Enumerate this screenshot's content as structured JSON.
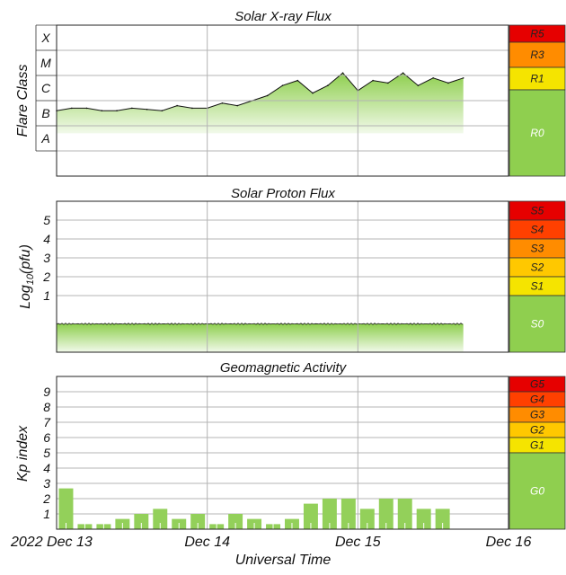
{
  "colors": {
    "green": "#8fcf4f",
    "yellow": "#f5e400",
    "light_orange": "#ffc800",
    "orange": "#ff8c00",
    "red_orange": "#ff4000",
    "red": "#e60000",
    "kp_bar": "#93d05a",
    "curve": "#111111"
  },
  "x_axis": {
    "label": "Universal Time",
    "ticks": [
      "2022 Dec 13",
      "Dec 14",
      "Dec 15",
      "Dec 16"
    ],
    "tick_days": [
      0,
      1,
      2,
      3
    ],
    "range_days": [
      0,
      3
    ]
  },
  "xray": {
    "title": "Solar X-ray Flux",
    "ylabel": "Flare Class",
    "classes": [
      "X",
      "M",
      "C",
      "B",
      "A"
    ],
    "scale": [
      {
        "label": "R5",
        "color": "red"
      },
      {
        "label": "R3",
        "color": "orange"
      },
      {
        "label": "R1",
        "color": "yellow"
      },
      {
        "label": "R0",
        "color": "green"
      }
    ]
  },
  "proton": {
    "title": "Solar Proton Flux",
    "ylabel": "Log10(pfu)",
    "ylabel_main": "Log",
    "ylabel_sub": "10",
    "ylabel_unit": "(pfu)",
    "ticks": [
      "1",
      "2",
      "3",
      "4",
      "5"
    ],
    "scale": [
      {
        "label": "S5",
        "color": "red"
      },
      {
        "label": "S4",
        "color": "red_orange"
      },
      {
        "label": "S3",
        "color": "orange"
      },
      {
        "label": "S2",
        "color": "light_orange"
      },
      {
        "label": "S1",
        "color": "yellow"
      },
      {
        "label": "S0",
        "color": "green"
      }
    ]
  },
  "kp": {
    "title": "Geomagnetic Activity",
    "ylabel": "Kp index",
    "ticks": [
      "1",
      "2",
      "3",
      "4",
      "5",
      "6",
      "7",
      "8",
      "9"
    ],
    "scale": [
      {
        "label": "G5",
        "color": "red"
      },
      {
        "label": "G4",
        "color": "red_orange"
      },
      {
        "label": "G3",
        "color": "orange"
      },
      {
        "label": "G2",
        "color": "light_orange"
      },
      {
        "label": "G1",
        "color": "yellow"
      },
      {
        "label": "G0",
        "color": "green"
      }
    ]
  },
  "chart_data": [
    {
      "type": "area",
      "title": "Solar X-ray Flux",
      "ylabel": "Flare Class",
      "xlabel": "Universal Time",
      "y_scale": "log",
      "y_tick_labels": [
        "A",
        "B",
        "C",
        "M",
        "X"
      ],
      "ylim": [
        -9,
        -3
      ],
      "x": [
        0.0,
        0.1,
        0.2,
        0.3,
        0.4,
        0.5,
        0.6,
        0.7,
        0.8,
        0.9,
        1.0,
        1.1,
        1.2,
        1.3,
        1.4,
        1.5,
        1.6,
        1.7,
        1.8,
        1.9,
        2.0,
        2.1,
        2.2,
        2.3,
        2.4,
        2.5,
        2.6,
        2.7
      ],
      "values": [
        -6.4,
        -6.3,
        -6.3,
        -6.4,
        -6.4,
        -6.3,
        -6.35,
        -6.4,
        -6.2,
        -6.3,
        -6.3,
        -6.1,
        -6.2,
        -6.0,
        -5.8,
        -5.4,
        -5.2,
        -5.7,
        -5.4,
        -4.9,
        -5.6,
        -5.2,
        -5.3,
        -4.9,
        -5.4,
        -5.1,
        -5.3,
        -5.1
      ]
    },
    {
      "type": "area",
      "title": "Solar Proton Flux",
      "ylabel": "Log10(pfu)",
      "xlabel": "Universal Time",
      "ylim": [
        -2,
        6
      ],
      "x": [
        0.0,
        0.5,
        1.0,
        1.5,
        2.0,
        2.5,
        2.7
      ],
      "values": [
        -0.5,
        -0.5,
        -0.5,
        -0.5,
        -0.5,
        -0.5,
        -0.5
      ]
    },
    {
      "type": "bar",
      "title": "Geomagnetic Activity",
      "ylabel": "Kp index",
      "xlabel": "Universal Time",
      "ylim": [
        0,
        10
      ],
      "x_start_days": [
        0.0,
        0.125,
        0.25,
        0.375,
        0.5,
        0.625,
        0.75,
        0.875,
        1.0,
        1.125,
        1.25,
        1.375,
        1.5,
        1.625,
        1.75,
        1.875,
        2.0,
        2.125,
        2.25,
        2.375,
        2.5,
        2.625
      ],
      "bar_width_days": 0.125,
      "values": [
        2.67,
        0.33,
        0.33,
        0.67,
        1.0,
        1.33,
        0.67,
        1.0,
        0.33,
        1.0,
        0.67,
        0.33,
        0.67,
        1.67,
        2.0,
        2.0,
        1.33,
        2.0,
        2.0,
        1.33,
        1.33,
        0
      ]
    }
  ]
}
